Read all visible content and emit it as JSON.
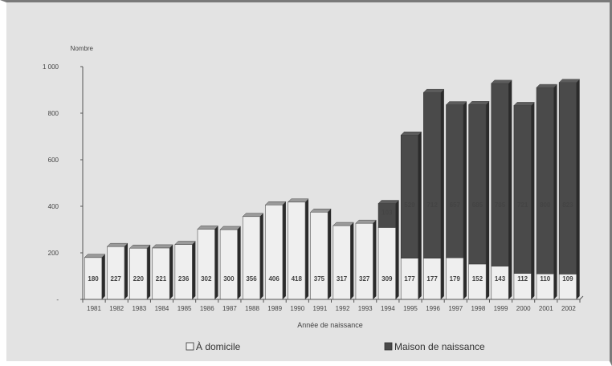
{
  "chart_data": {
    "type": "bar",
    "stacked": true,
    "ylabel": "Nombre",
    "xlabel": "Année de naissance",
    "ylim": [
      0,
      1000
    ],
    "yticks": [
      "-",
      "200",
      "400",
      "600",
      "800",
      "1 000"
    ],
    "grid": false,
    "legend_position": "bottom",
    "categories": [
      "1981",
      "1982",
      "1983",
      "1984",
      "1985",
      "1986",
      "1987",
      "1988",
      "1989",
      "1990",
      "1991",
      "1992",
      "1993",
      "1994",
      "1995",
      "1996",
      "1997",
      "1998",
      "1999",
      "2000",
      "2001",
      "2002"
    ],
    "series": [
      {
        "name": "À domicile",
        "color": "#efefef",
        "values": [
          180,
          227,
          220,
          221,
          236,
          302,
          300,
          356,
          406,
          418,
          375,
          317,
          327,
          309,
          177,
          177,
          179,
          152,
          143,
          112,
          110,
          109
        ]
      },
      {
        "name": "Maison de naissance",
        "color": "#4a4a4a",
        "values": [
          0,
          0,
          0,
          0,
          0,
          0,
          0,
          0,
          0,
          0,
          0,
          0,
          0,
          103,
          529,
          712,
          657,
          685,
          785,
          721,
          800,
          823
        ]
      }
    ]
  }
}
